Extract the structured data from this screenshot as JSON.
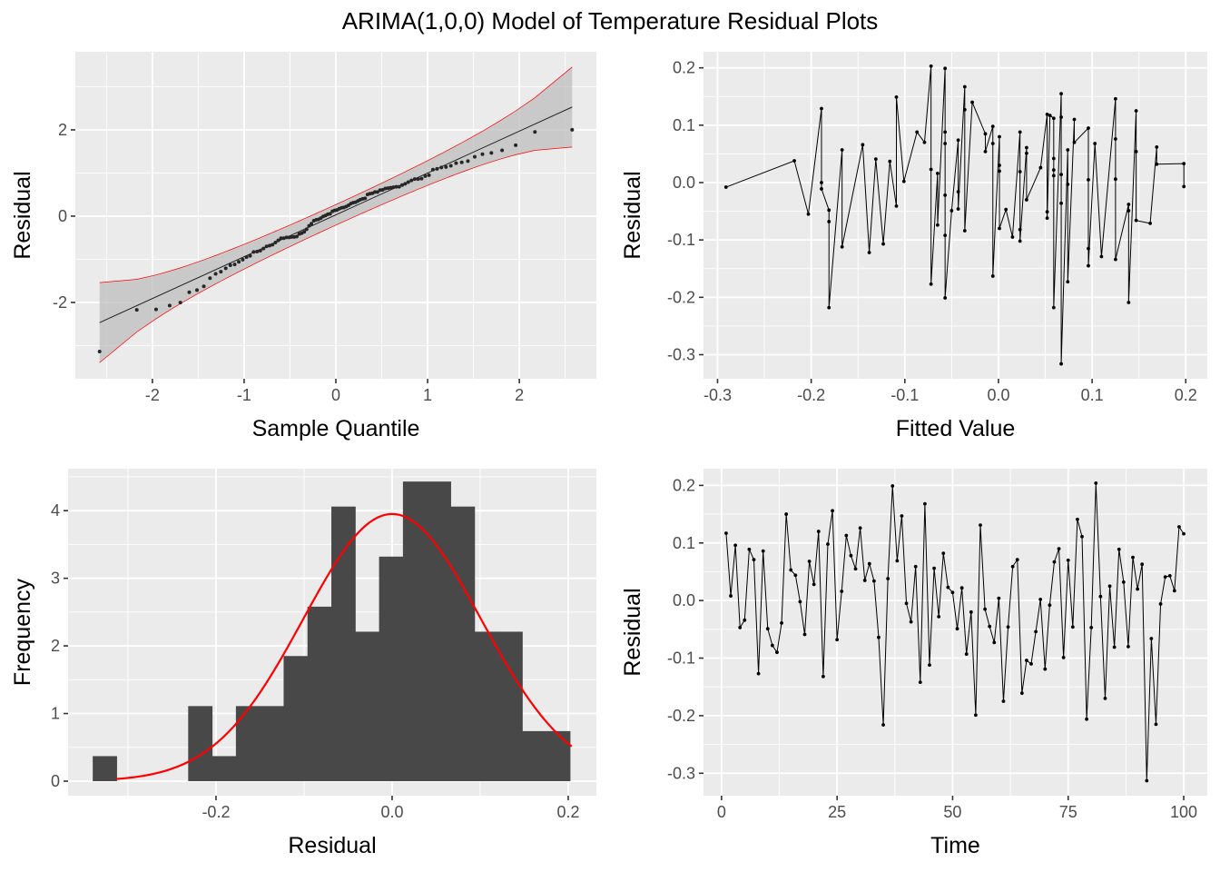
{
  "title": "ARIMA(1,0,0) Model of Temperature Residual Plots",
  "chart_data": [
    {
      "type": "scatter",
      "xlabel": "Sample Quantile",
      "ylabel": "Residual",
      "xlim": [
        -2.84,
        2.84
      ],
      "ylim": [
        -3.77,
        3.81
      ],
      "x_ticks": [
        -2,
        -1,
        0,
        1,
        2
      ],
      "x_tick_labels": [
        "-2",
        "-1",
        "0",
        "1",
        "2"
      ],
      "y_ticks": [
        -2,
        0,
        2
      ],
      "y_tick_labels": [
        "-2",
        "0",
        "2"
      ],
      "reference_line": {
        "slope": 0.97,
        "intercept": 0.03
      },
      "band_fill": "#BDBDBD",
      "band_border_color": "#FF0000",
      "point_color": "#262626",
      "grid": true
    },
    {
      "type": "line",
      "xlabel": "Fitted Value",
      "ylabel": "Residual",
      "xlim": [
        -0.315,
        0.223
      ],
      "ylim": [
        -0.342,
        0.228
      ],
      "x_ticks": [
        -0.3,
        -0.2,
        -0.1,
        0.0,
        0.1,
        0.2
      ],
      "x_tick_labels": [
        "-0.3",
        "-0.2",
        "-0.1",
        "0.0",
        "0.1",
        "0.2"
      ],
      "y_ticks": [
        -0.3,
        -0.2,
        -0.1,
        0.0,
        0.1,
        0.2
      ],
      "y_tick_labels": [
        "-0.3",
        "-0.2",
        "-0.1",
        "0.0",
        "0.1",
        "0.2"
      ],
      "grid": true,
      "points": [
        [
          -0.291,
          -0.008
        ],
        [
          -0.218,
          0.038
        ],
        [
          -0.203,
          -0.055
        ],
        [
          -0.189,
          0.129
        ],
        [
          -0.189,
          0.0
        ],
        [
          -0.189,
          -0.011
        ],
        [
          -0.181,
          -0.048
        ],
        [
          -0.181,
          -0.068
        ],
        [
          -0.181,
          -0.218
        ],
        [
          -0.167,
          0.057
        ],
        [
          -0.167,
          -0.112
        ],
        [
          -0.145,
          0.066
        ],
        [
          -0.138,
          -0.122
        ],
        [
          -0.131,
          0.041
        ],
        [
          -0.123,
          -0.107
        ],
        [
          -0.116,
          0.037
        ],
        [
          -0.109,
          -0.041
        ],
        [
          -0.109,
          0.149
        ],
        [
          -0.101,
          0.002
        ],
        [
          -0.087,
          0.088
        ],
        [
          -0.079,
          0.07
        ],
        [
          -0.072,
          0.203
        ],
        [
          -0.072,
          0.023
        ],
        [
          -0.072,
          -0.177
        ],
        [
          -0.065,
          0.016
        ],
        [
          -0.065,
          -0.074
        ],
        [
          -0.057,
          0.199
        ],
        [
          -0.057,
          0.088
        ],
        [
          -0.057,
          0.068
        ],
        [
          -0.057,
          -0.022
        ],
        [
          -0.057,
          -0.092
        ],
        [
          -0.057,
          -0.201
        ],
        [
          -0.05,
          -0.049
        ],
        [
          -0.043,
          0.074
        ],
        [
          -0.043,
          -0.016
        ],
        [
          -0.043,
          -0.046
        ],
        [
          -0.036,
          0.167
        ],
        [
          -0.036,
          0.127
        ],
        [
          -0.036,
          -0.084
        ],
        [
          -0.028,
          0.14
        ],
        [
          -0.014,
          0.085
        ],
        [
          -0.014,
          0.054
        ],
        [
          -0.006,
          0.098
        ],
        [
          -0.006,
          0.068
        ],
        [
          -0.006,
          -0.163
        ],
        [
          0.001,
          0.08
        ],
        [
          0.001,
          0.03
        ],
        [
          0.001,
          0.02
        ],
        [
          0.001,
          -0.08
        ],
        [
          0.008,
          -0.047
        ],
        [
          0.015,
          -0.095
        ],
        [
          0.023,
          0.088
        ],
        [
          0.023,
          0.019
        ],
        [
          0.023,
          -0.082
        ],
        [
          0.023,
          -0.102
        ],
        [
          0.03,
          0.061
        ],
        [
          0.03,
          0.051
        ],
        [
          0.03,
          -0.03
        ],
        [
          0.045,
          0.026
        ],
        [
          0.052,
          0.119
        ],
        [
          0.052,
          -0.051
        ],
        [
          0.052,
          -0.062
        ],
        [
          0.055,
          0.117
        ],
        [
          0.059,
          0.112
        ],
        [
          0.059,
          0.042
        ],
        [
          0.059,
          0.022
        ],
        [
          0.059,
          0.012
        ],
        [
          0.059,
          -0.218
        ],
        [
          0.067,
          0.155
        ],
        [
          0.067,
          0.114
        ],
        [
          0.067,
          0.014
        ],
        [
          0.067,
          -0.036
        ],
        [
          0.067,
          -0.316
        ],
        [
          0.074,
          0.057
        ],
        [
          0.074,
          -0.003
        ],
        [
          0.074,
          -0.173
        ],
        [
          0.081,
          0.11
        ],
        [
          0.081,
          0.07
        ],
        [
          0.096,
          0.095
        ],
        [
          0.096,
          0.005
        ],
        [
          0.096,
          -0.115
        ],
        [
          0.096,
          -0.145
        ],
        [
          0.103,
          0.068
        ],
        [
          0.11,
          -0.129
        ],
        [
          0.125,
          0.146
        ],
        [
          0.125,
          0.076
        ],
        [
          0.125,
          0.006
        ],
        [
          0.125,
          -0.134
        ],
        [
          0.139,
          -0.038
        ],
        [
          0.139,
          -0.049
        ],
        [
          0.139,
          -0.209
        ],
        [
          0.147,
          0.125
        ],
        [
          0.147,
          0.054
        ],
        [
          0.147,
          -0.066
        ],
        [
          0.162,
          -0.071
        ],
        [
          0.169,
          0.062
        ],
        [
          0.169,
          0.032
        ],
        [
          0.198,
          0.033
        ],
        [
          0.198,
          -0.007
        ]
      ]
    },
    {
      "type": "bar",
      "xlabel": "Residual",
      "ylabel": "Frequency",
      "xlim": [
        -0.368,
        0.232
      ],
      "ylim": [
        -0.215,
        4.62
      ],
      "x_ticks": [
        -0.2,
        0.0,
        0.2
      ],
      "x_tick_labels": [
        "-0.2",
        "0.0",
        "0.2"
      ],
      "y_ticks": [
        0,
        1,
        2,
        3,
        4
      ],
      "y_tick_labels": [
        "0",
        "1",
        "2",
        "3",
        "4"
      ],
      "grid": true,
      "bin_start": -0.34,
      "bin_width": 0.0271,
      "values": [
        0.37,
        0,
        0,
        0,
        1.11,
        0.37,
        1.11,
        1.11,
        1.85,
        2.58,
        4.06,
        2.21,
        3.32,
        4.43,
        4.43,
        4.06,
        2.21,
        2.21,
        0.74,
        0.74
      ],
      "bar_color": "#484848",
      "normal_curve": {
        "mean": 0.0,
        "sd": 0.101,
        "color": "#FF0000"
      }
    },
    {
      "type": "line",
      "xlabel": "Time",
      "ylabel": "Residual",
      "xlim": [
        -3.9,
        105.1
      ],
      "ylim": [
        -0.339,
        0.229
      ],
      "x_ticks": [
        0,
        25,
        50,
        75,
        100
      ],
      "x_tick_labels": [
        "0",
        "25",
        "50",
        "75",
        "100"
      ],
      "y_ticks": [
        -0.3,
        -0.2,
        -0.1,
        0.0,
        0.1,
        0.2
      ],
      "y_tick_labels": [
        "-0.3",
        "-0.2",
        "-0.1",
        "0.0",
        "0.1",
        "0.2"
      ],
      "grid": true,
      "x_start": 1,
      "values": [
        0.117,
        0.008,
        0.096,
        -0.047,
        -0.034,
        0.089,
        0.071,
        -0.127,
        0.086,
        -0.049,
        -0.078,
        -0.09,
        -0.039,
        0.15,
        0.053,
        0.044,
        -0.002,
        -0.059,
        0.068,
        0.028,
        0.12,
        -0.132,
        0.098,
        0.156,
        -0.068,
        0.016,
        0.113,
        0.078,
        0.055,
        0.126,
        0.035,
        0.064,
        0.034,
        -0.064,
        -0.216,
        0.038,
        0.199,
        0.069,
        0.147,
        -0.005,
        -0.037,
        0.059,
        -0.142,
        0.168,
        -0.112,
        0.056,
        -0.028,
        0.082,
        0.023,
        0.014,
        -0.049,
        0.022,
        -0.093,
        -0.02,
        -0.199,
        0.131,
        -0.015,
        -0.045,
        -0.073,
        0.004,
        -0.175,
        -0.046,
        0.059,
        0.071,
        -0.161,
        -0.104,
        -0.11,
        -0.054,
        0.002,
        -0.119,
        -0.008,
        0.067,
        0.09,
        -0.099,
        0.07,
        -0.046,
        0.141,
        0.111,
        -0.206,
        -0.047,
        0.204,
        0.007,
        -0.17,
        0.025,
        -0.081,
        0.089,
        0.032,
        -0.08,
        0.075,
        0.02,
        0.063,
        -0.313,
        -0.066,
        -0.215,
        -0.006,
        0.041,
        0.043,
        0.017,
        0.128,
        0.116
      ]
    }
  ]
}
